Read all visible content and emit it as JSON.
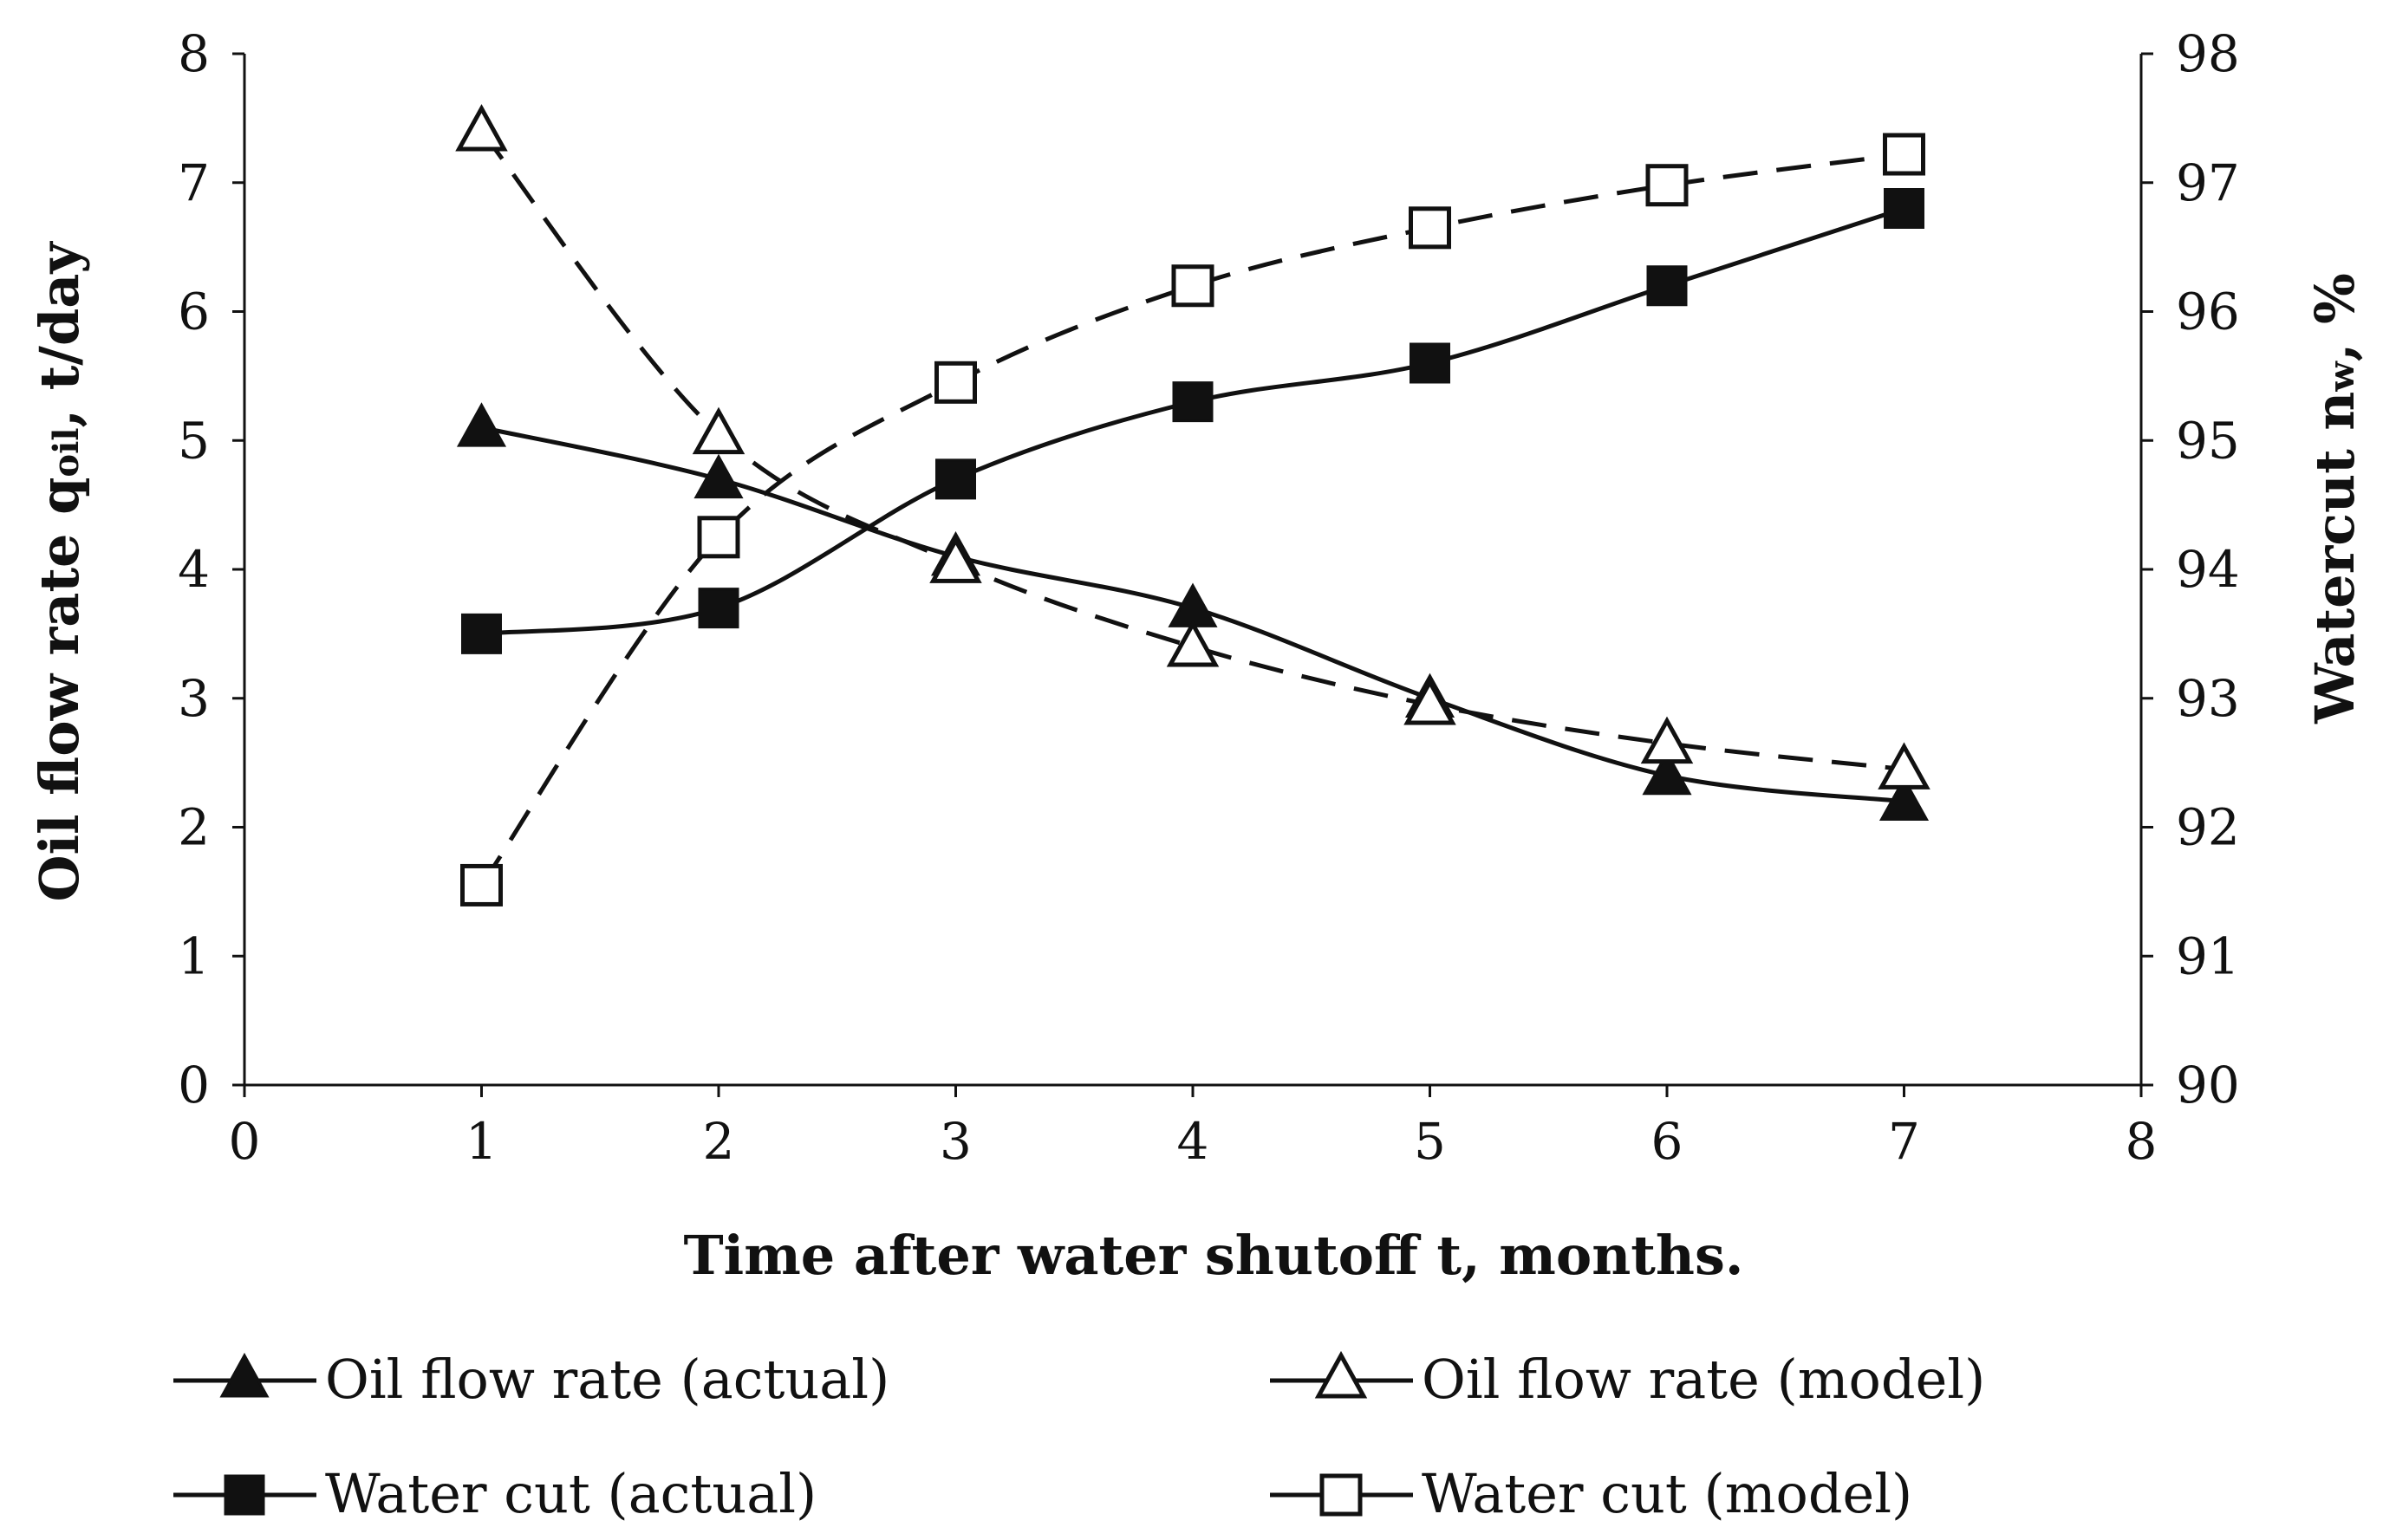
{
  "chart_data": {
    "type": "line",
    "title": "",
    "xlabel": "Time after water shutoff t, months.",
    "ylabel_left": {
      "prefix": "Oil flow rate q",
      "sub": "oil",
      "suffix": ", t/day"
    },
    "ylabel_right": {
      "prefix": "Watercut n",
      "sub": "w",
      "suffix": ", %"
    },
    "xlim": [
      0,
      8
    ],
    "ylim_left": [
      0,
      8
    ],
    "ylim_right": [
      90,
      98
    ],
    "x_ticks": [
      "0",
      "1",
      "2",
      "3",
      "4",
      "5",
      "6",
      "7",
      "8"
    ],
    "y_left_ticks": [
      "0",
      "1",
      "2",
      "3",
      "4",
      "5",
      "6",
      "7",
      "8"
    ],
    "y_right_ticks": [
      "90",
      "91",
      "92",
      "93",
      "94",
      "95",
      "96",
      "97",
      "98"
    ],
    "grid": false,
    "legend_position": "bottom",
    "x": [
      1,
      2,
      3,
      4,
      5,
      6,
      7
    ],
    "series": [
      {
        "name": "Oil flow rate (actual)",
        "axis": "left",
        "marker": "triangle-filled",
        "line": "solid",
        "values": [
          5.1,
          4.7,
          4.1,
          3.7,
          3.0,
          2.4,
          2.2
        ]
      },
      {
        "name": "Oil flow rate (model)",
        "axis": "left",
        "marker": "triangle-open",
        "line": "dashed",
        "values": [
          7.4,
          5.05,
          4.05,
          3.4,
          2.95,
          2.65,
          2.45
        ]
      },
      {
        "name": "Water cut (actual)",
        "axis": "right",
        "marker": "square-filled",
        "line": "solid",
        "values": [
          93.5,
          93.7,
          94.7,
          95.3,
          95.6,
          96.2,
          96.8
        ]
      },
      {
        "name": "Water cut (model)",
        "axis": "right",
        "marker": "square-open",
        "line": "dashed",
        "values": [
          91.55,
          94.25,
          95.45,
          96.2,
          96.65,
          96.98,
          97.22
        ]
      }
    ]
  }
}
